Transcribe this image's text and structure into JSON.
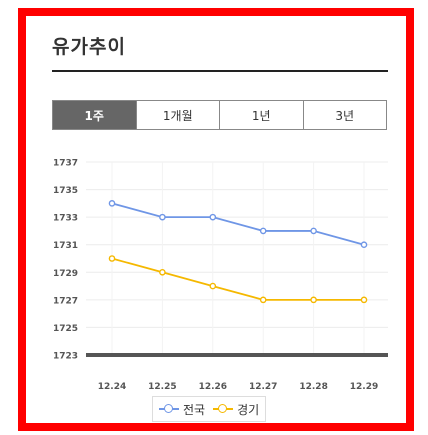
{
  "title": "유가추이",
  "tabs": [
    {
      "label": "1주",
      "active": true
    },
    {
      "label": "1개월",
      "active": false
    },
    {
      "label": "1년",
      "active": false
    },
    {
      "label": "3년",
      "active": false
    }
  ],
  "chart_data": {
    "type": "line",
    "x": [
      "12.24",
      "12.25",
      "12.26",
      "12.27",
      "12.28",
      "12.29"
    ],
    "ylim": [
      1723,
      1737
    ],
    "yticks": [
      1723,
      1725,
      1727,
      1729,
      1731,
      1733,
      1735,
      1737
    ],
    "grid": true,
    "legend_position": "bottom",
    "series": [
      {
        "name": "전국",
        "color": "#6f96e6",
        "values": [
          1734,
          1733,
          1733,
          1732,
          1732,
          1731
        ]
      },
      {
        "name": "경기",
        "color": "#f5b800",
        "values": [
          1730,
          1729,
          1728,
          1727,
          1727,
          1727
        ]
      }
    ]
  }
}
